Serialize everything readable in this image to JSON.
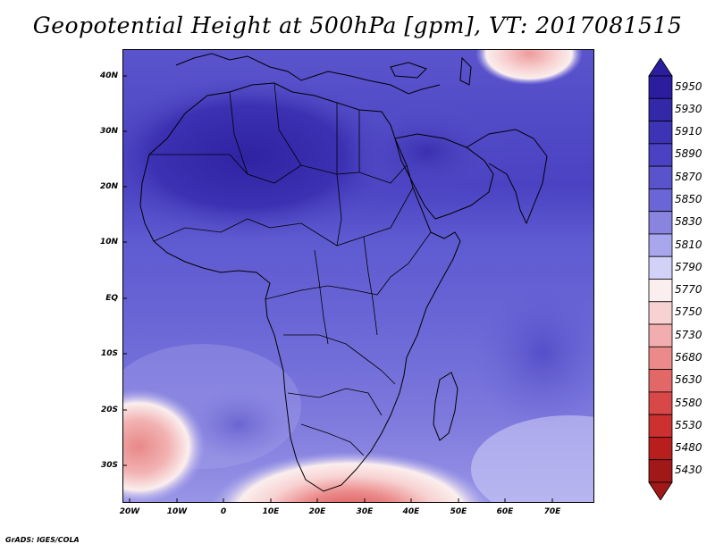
{
  "title": "Geopotential Height at 500hPa [gpm], VT: 2017081515",
  "credit": "GrADS: IGES/COLA",
  "map": {
    "lat_labels": [
      "40N",
      "30N",
      "20N",
      "10N",
      "EQ",
      "10S",
      "20S",
      "30S"
    ],
    "lon_labels": [
      "20W",
      "10W",
      "0",
      "10E",
      "20E",
      "30E",
      "40E",
      "50E",
      "60E",
      "70E"
    ]
  },
  "colorbar": {
    "levels": [
      "5950",
      "5930",
      "5910",
      "5890",
      "5870",
      "5850",
      "5830",
      "5810",
      "5790",
      "5770",
      "5750",
      "5730",
      "5680",
      "5630",
      "5580",
      "5530",
      "5480",
      "5430"
    ],
    "colors": [
      "#2a1e9e",
      "#3328a8",
      "#3d34b5",
      "#4a42c2",
      "#5a54cc",
      "#6a66d6",
      "#8884e0",
      "#a8a6ec",
      "#d2d2f8",
      "#fbeeee",
      "#f8d2d2",
      "#f2aeae",
      "#eb8a8a",
      "#e26868",
      "#d84848",
      "#cc3030",
      "#b81e1e",
      "#a01818"
    ]
  }
}
